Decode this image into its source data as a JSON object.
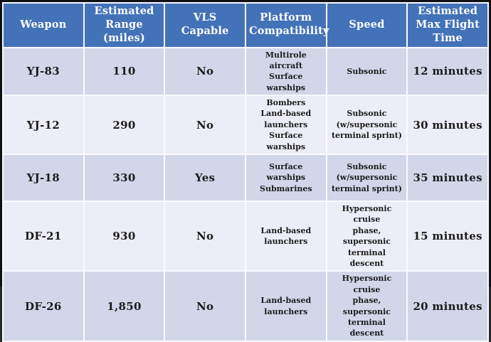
{
  "table": {
    "columns": [
      {
        "label": "Weapon"
      },
      {
        "label": "Estimated\nRange (miles)"
      },
      {
        "label": "VLS Capable"
      },
      {
        "label": "Platform\nCompatibility"
      },
      {
        "label": "Speed"
      },
      {
        "label": "Estimated\nMax Flight\nTime"
      }
    ],
    "rows": [
      {
        "weapon": "YJ-83",
        "range": "110",
        "vls": "No",
        "platforms": "Multirole aircraft\nSurface warships",
        "speed": "Subsonic",
        "flight_time": "12 minutes"
      },
      {
        "weapon": "YJ-12",
        "range": "290",
        "vls": "No",
        "platforms": "Bombers\nLand-based\nlaunchers\nSurface warships",
        "speed": "Subsonic\n(w/supersonic\nterminal sprint)",
        "flight_time": "30 minutes"
      },
      {
        "weapon": "YJ-18",
        "range": "330",
        "vls": "Yes",
        "platforms": "Surface warships\nSubmarines",
        "speed": "Subsonic\n(w/supersonic\nterminal sprint)",
        "flight_time": "35 minutes"
      },
      {
        "weapon": "DF-21",
        "range": "930",
        "vls": "No",
        "platforms": "Land-based\nlaunchers",
        "speed": "Hypersonic cruise\nphase, supersonic\nterminal descent",
        "flight_time": "15 minutes"
      },
      {
        "weapon": "DF-26",
        "range": "1,850",
        "vls": "No",
        "platforms": "Land-based\nlaunchers",
        "speed": "Hypersonic cruise\nphase, supersonic\nterminal descent",
        "flight_time": "20 minutes"
      }
    ]
  },
  "colors": {
    "header_bg": "#4472b8",
    "header_text": "#ffffff",
    "row_odd_bg": "#d2d6e8",
    "row_even_bg": "#ecedf6",
    "cell_text": "#1b1b1b",
    "outer_border": "#101114",
    "grid_line": "#fafbfe"
  }
}
